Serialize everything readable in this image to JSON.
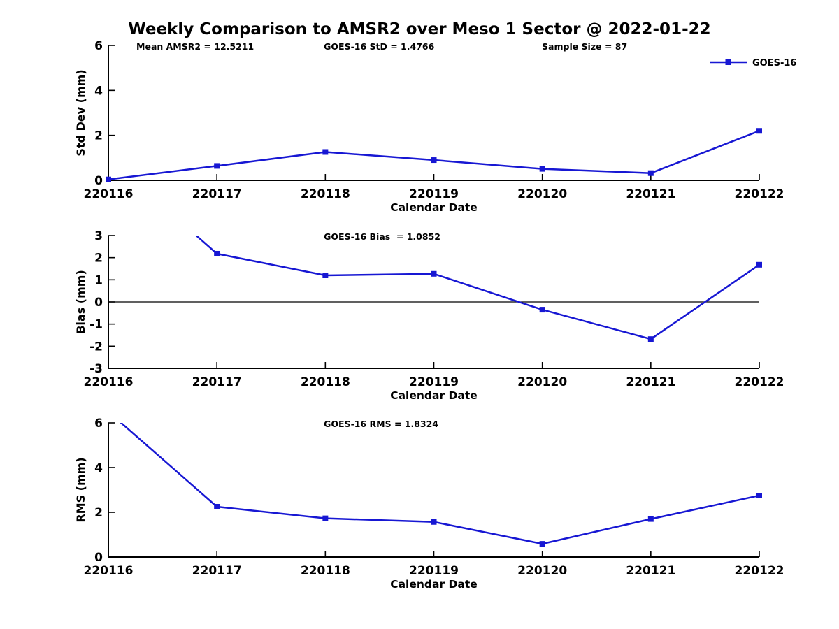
{
  "title": "Weekly Comparison to AMSR2 over Meso 1 Sector @ 2022-01-22",
  "colors": {
    "line": "#1717d3",
    "axis": "#000000",
    "text": "#000000",
    "background": "#ffffff"
  },
  "chart_data": [
    {
      "type": "line",
      "id": "stddev",
      "stats_annotations": [
        {
          "text": "Mean AMSR2 = 12.5211",
          "xfrac": 0.043
        },
        {
          "text": "GOES-16 StD = 1.4766",
          "xfrac": 0.331
        },
        {
          "text": "Sample Size = 87",
          "xfrac": 0.666
        }
      ],
      "xlabel": "Calendar Date",
      "ylabel": "Std Dev (mm)",
      "ylim": [
        0,
        6
      ],
      "yticks": [
        0,
        2,
        4,
        6
      ],
      "categories": [
        "220116",
        "220117",
        "220118",
        "220119",
        "220120",
        "220121",
        "220122"
      ],
      "series": [
        {
          "name": "GOES-16",
          "values": [
            0.04,
            0.64,
            1.26,
            0.9,
            0.51,
            0.32,
            2.2
          ]
        }
      ],
      "legend": {
        "show": true,
        "label": "GOES-16",
        "position": "top-right"
      },
      "zero_line": false,
      "grid": false
    },
    {
      "type": "line",
      "id": "bias",
      "stats_annotations": [
        {
          "text": "GOES-16 Bias  = 1.0852",
          "xfrac": 0.331
        }
      ],
      "xlabel": "Calendar Date",
      "ylabel": "Bias (mm)",
      "ylim": [
        -3,
        3
      ],
      "yticks": [
        -3,
        -2,
        -1,
        0,
        1,
        2,
        3
      ],
      "categories": [
        "220116",
        "220117",
        "220118",
        "220119",
        "220120",
        "220121",
        "220122"
      ],
      "series": [
        {
          "name": "GOES-16",
          "values": [
            6.5,
            2.18,
            1.2,
            1.27,
            -0.35,
            -1.68,
            1.68
          ]
        }
      ],
      "legend": {
        "show": false,
        "label": "GOES-16"
      },
      "zero_line": true,
      "grid": false
    },
    {
      "type": "line",
      "id": "rms",
      "stats_annotations": [
        {
          "text": "GOES-16 RMS = 1.8324",
          "xfrac": 0.331
        }
      ],
      "xlabel": "Calendar Date",
      "ylabel": "RMS (mm)",
      "ylim": [
        0,
        6
      ],
      "yticks": [
        0,
        2,
        4,
        6
      ],
      "categories": [
        "220116",
        "220117",
        "220118",
        "220119",
        "220120",
        "220121",
        "220122"
      ],
      "series": [
        {
          "name": "GOES-16",
          "values": [
            6.5,
            2.25,
            1.73,
            1.57,
            0.59,
            1.7,
            2.75
          ]
        }
      ],
      "legend": {
        "show": false,
        "label": "GOES-16"
      },
      "zero_line": false,
      "grid": false
    }
  ]
}
